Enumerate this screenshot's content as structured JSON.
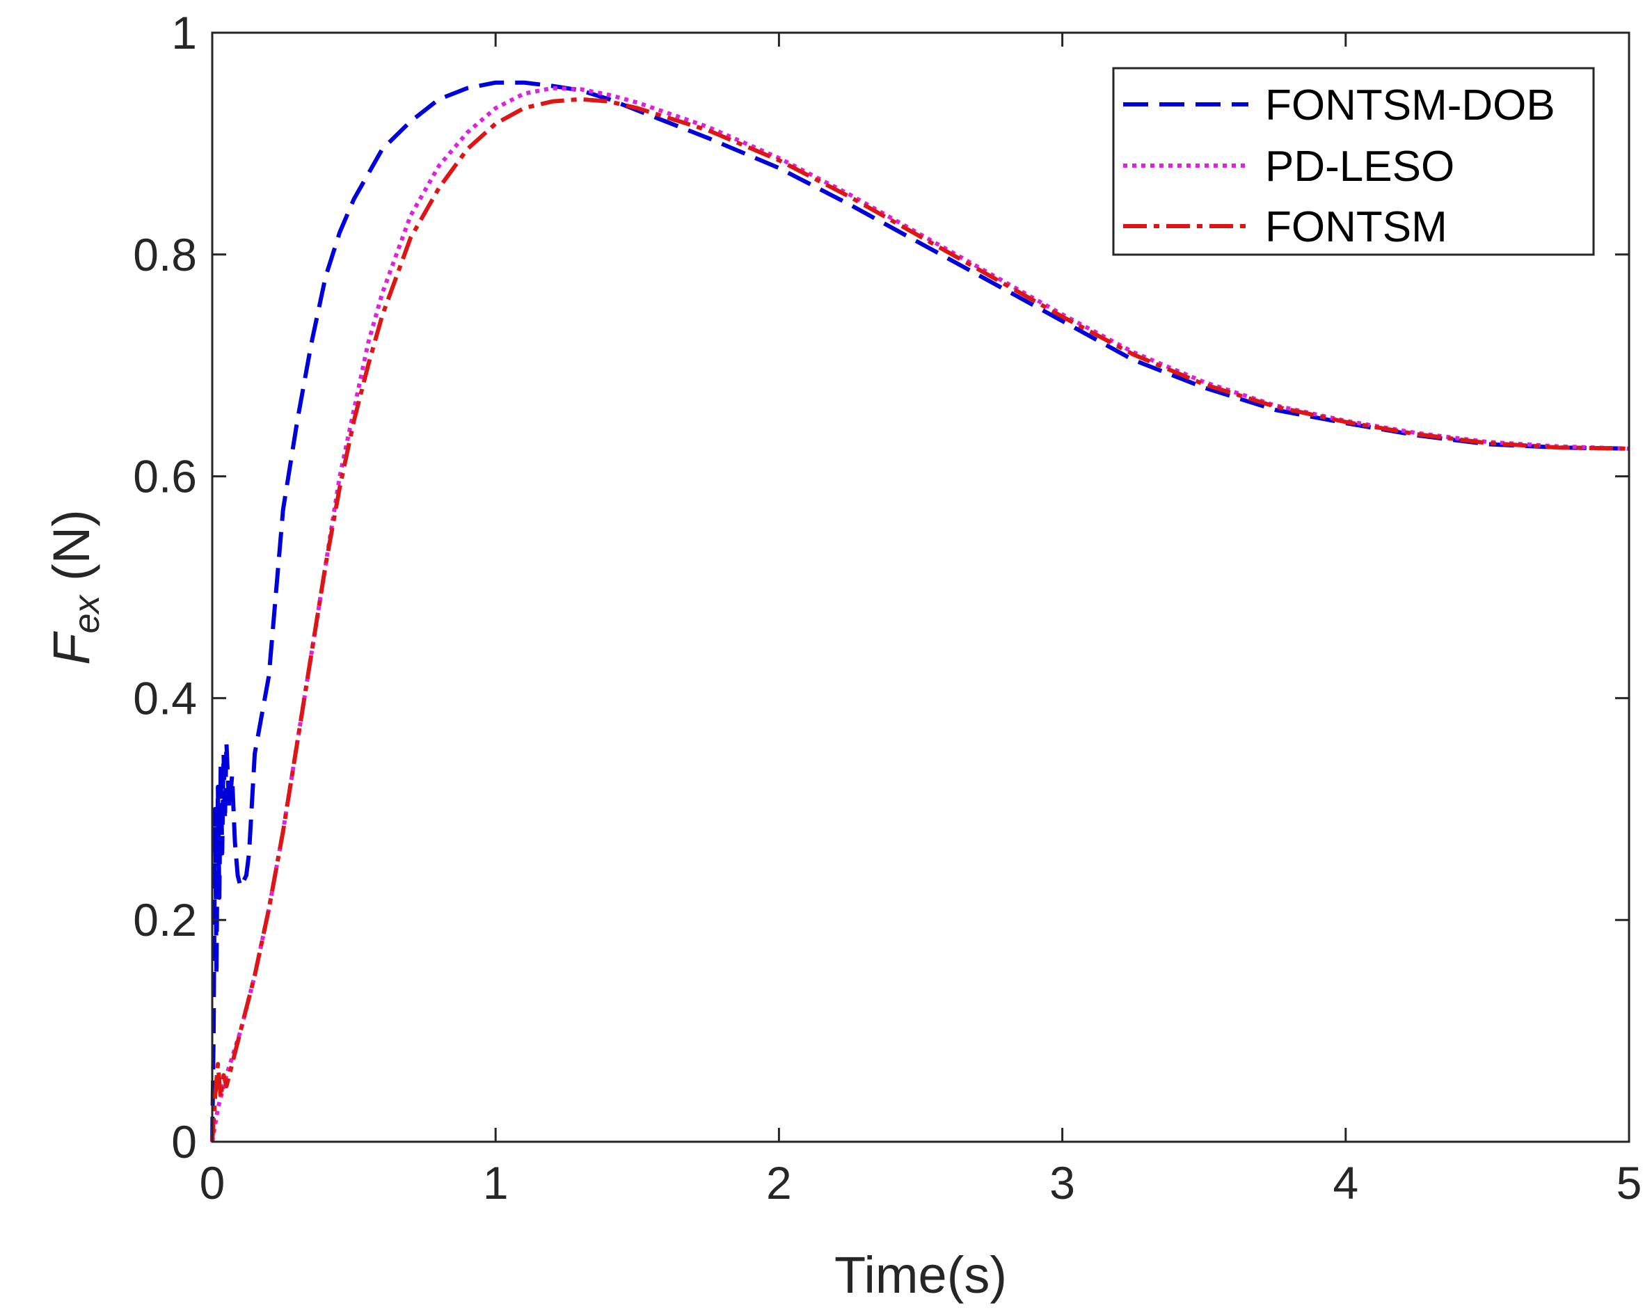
{
  "chart_data": {
    "type": "line",
    "title": "",
    "xlabel": "Time(s)",
    "ylabel_main": "F",
    "ylabel_sub": "ex",
    "ylabel_unit": " (N)",
    "xlim": [
      0,
      5
    ],
    "ylim": [
      0,
      1
    ],
    "xticks": [
      0,
      1,
      2,
      3,
      4,
      5
    ],
    "yticks": [
      0,
      0.2,
      0.4,
      0.6,
      0.8,
      1
    ],
    "xtick_labels": [
      "0",
      "1",
      "2",
      "3",
      "4",
      "5"
    ],
    "ytick_labels": [
      "0",
      "0.2",
      "0.4",
      "0.6",
      "0.8",
      "1"
    ],
    "grid": false,
    "legend_position": "top-right",
    "series": [
      {
        "name": "FONTSM-DOB",
        "color": "#0000dd",
        "style": "dashed",
        "points": [
          [
            0.0,
            0.0
          ],
          [
            0.005,
            0.1
          ],
          [
            0.01,
            0.3
          ],
          [
            0.015,
            0.15
          ],
          [
            0.02,
            0.32
          ],
          [
            0.025,
            0.22
          ],
          [
            0.03,
            0.34
          ],
          [
            0.035,
            0.26
          ],
          [
            0.04,
            0.35
          ],
          [
            0.045,
            0.29
          ],
          [
            0.05,
            0.36
          ],
          [
            0.06,
            0.3
          ],
          [
            0.07,
            0.33
          ],
          [
            0.08,
            0.27
          ],
          [
            0.09,
            0.24
          ],
          [
            0.1,
            0.23
          ],
          [
            0.12,
            0.24
          ],
          [
            0.13,
            0.26
          ],
          [
            0.15,
            0.35
          ],
          [
            0.2,
            0.42
          ],
          [
            0.25,
            0.57
          ],
          [
            0.3,
            0.65
          ],
          [
            0.35,
            0.72
          ],
          [
            0.4,
            0.78
          ],
          [
            0.45,
            0.82
          ],
          [
            0.5,
            0.85
          ],
          [
            0.6,
            0.895
          ],
          [
            0.7,
            0.92
          ],
          [
            0.8,
            0.94
          ],
          [
            0.9,
            0.95
          ],
          [
            1.0,
            0.955
          ],
          [
            1.1,
            0.955
          ],
          [
            1.2,
            0.952
          ],
          [
            1.3,
            0.948
          ],
          [
            1.4,
            0.94
          ],
          [
            1.5,
            0.93
          ],
          [
            1.75,
            0.905
          ],
          [
            2.0,
            0.878
          ],
          [
            2.25,
            0.845
          ],
          [
            2.5,
            0.81
          ],
          [
            2.75,
            0.775
          ],
          [
            3.0,
            0.74
          ],
          [
            3.25,
            0.705
          ],
          [
            3.5,
            0.68
          ],
          [
            3.75,
            0.66
          ],
          [
            4.0,
            0.648
          ],
          [
            4.25,
            0.637
          ],
          [
            4.5,
            0.629
          ],
          [
            4.75,
            0.626
          ],
          [
            5.0,
            0.625
          ]
        ]
      },
      {
        "name": "PD-LESO",
        "color": "#e020e0",
        "style": "dotted",
        "points": [
          [
            0.0,
            0.0
          ],
          [
            0.02,
            0.03
          ],
          [
            0.05,
            0.06
          ],
          [
            0.1,
            0.1
          ],
          [
            0.15,
            0.15
          ],
          [
            0.2,
            0.21
          ],
          [
            0.25,
            0.28
          ],
          [
            0.3,
            0.36
          ],
          [
            0.35,
            0.44
          ],
          [
            0.4,
            0.52
          ],
          [
            0.45,
            0.6
          ],
          [
            0.5,
            0.66
          ],
          [
            0.55,
            0.72
          ],
          [
            0.6,
            0.765
          ],
          [
            0.7,
            0.835
          ],
          [
            0.8,
            0.88
          ],
          [
            0.9,
            0.91
          ],
          [
            1.0,
            0.932
          ],
          [
            1.1,
            0.945
          ],
          [
            1.2,
            0.95
          ],
          [
            1.3,
            0.949
          ],
          [
            1.4,
            0.944
          ],
          [
            1.5,
            0.937
          ],
          [
            1.75,
            0.915
          ],
          [
            2.0,
            0.887
          ],
          [
            2.25,
            0.854
          ],
          [
            2.5,
            0.818
          ],
          [
            2.75,
            0.782
          ],
          [
            3.0,
            0.746
          ],
          [
            3.25,
            0.712
          ],
          [
            3.5,
            0.685
          ],
          [
            3.75,
            0.664
          ],
          [
            4.0,
            0.65
          ],
          [
            4.25,
            0.639
          ],
          [
            4.5,
            0.631
          ],
          [
            4.75,
            0.627
          ],
          [
            5.0,
            0.625
          ]
        ]
      },
      {
        "name": "FONTSM",
        "color": "#dd1515",
        "style": "dashdot",
        "points": [
          [
            0.0,
            0.0
          ],
          [
            0.01,
            0.04
          ],
          [
            0.02,
            0.07
          ],
          [
            0.03,
            0.04
          ],
          [
            0.04,
            0.06
          ],
          [
            0.05,
            0.05
          ],
          [
            0.08,
            0.08
          ],
          [
            0.1,
            0.1
          ],
          [
            0.15,
            0.15
          ],
          [
            0.2,
            0.21
          ],
          [
            0.25,
            0.28
          ],
          [
            0.3,
            0.36
          ],
          [
            0.35,
            0.44
          ],
          [
            0.4,
            0.52
          ],
          [
            0.45,
            0.59
          ],
          [
            0.5,
            0.65
          ],
          [
            0.55,
            0.7
          ],
          [
            0.6,
            0.745
          ],
          [
            0.7,
            0.815
          ],
          [
            0.8,
            0.86
          ],
          [
            0.9,
            0.895
          ],
          [
            1.0,
            0.918
          ],
          [
            1.1,
            0.932
          ],
          [
            1.2,
            0.938
          ],
          [
            1.3,
            0.94
          ],
          [
            1.4,
            0.938
          ],
          [
            1.5,
            0.932
          ],
          [
            1.75,
            0.912
          ],
          [
            2.0,
            0.885
          ],
          [
            2.25,
            0.852
          ],
          [
            2.5,
            0.816
          ],
          [
            2.75,
            0.78
          ],
          [
            3.0,
            0.744
          ],
          [
            3.25,
            0.71
          ],
          [
            3.5,
            0.683
          ],
          [
            3.75,
            0.663
          ],
          [
            4.0,
            0.649
          ],
          [
            4.25,
            0.638
          ],
          [
            4.5,
            0.63
          ],
          [
            4.75,
            0.626
          ],
          [
            5.0,
            0.625
          ]
        ]
      }
    ]
  }
}
